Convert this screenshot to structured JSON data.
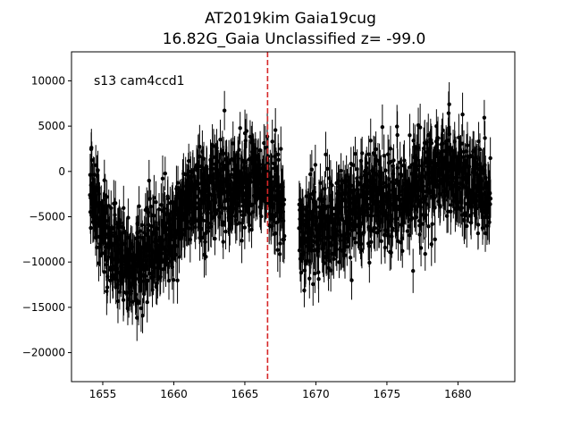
{
  "chart_data": {
    "type": "scatter",
    "title": "AT2019kim  Gaia19cug",
    "subtitle": "16.82G_Gaia Unclassified z= -99.0",
    "annotation": "s13 cam4ccd1",
    "xlabel": "",
    "ylabel": "",
    "xlim": [
      1652.8,
      1684.0
    ],
    "ylim": [
      -23200,
      13200
    ],
    "xticks": [
      1655,
      1660,
      1665,
      1670,
      1675,
      1680
    ],
    "yticks": [
      -20000,
      -15000,
      -10000,
      -5000,
      0,
      5000,
      10000
    ],
    "grid": false,
    "marker_color": "#000000",
    "reference_line": {
      "x": 1666.6,
      "color": "#d62728",
      "style": "dashed"
    },
    "series": [
      {
        "marker": "circle",
        "x_range": [
          1654.1,
          1682.3
        ],
        "gap": [
          1667.8,
          1668.8
        ],
        "trend": [
          [
            1654.1,
            -3000
          ],
          [
            1655.0,
            -7000
          ],
          [
            1656.0,
            -9000
          ],
          [
            1657.0,
            -10500
          ],
          [
            1658.0,
            -9500
          ],
          [
            1659.0,
            -7500
          ],
          [
            1660.0,
            -6000
          ],
          [
            1661.0,
            -3500
          ],
          [
            1662.0,
            -2000
          ],
          [
            1663.0,
            -1500
          ],
          [
            1664.0,
            -2500
          ],
          [
            1665.0,
            -1500
          ],
          [
            1666.0,
            0
          ],
          [
            1666.6,
            -1500
          ],
          [
            1667.5,
            -3000
          ],
          [
            1668.9,
            -6000
          ],
          [
            1670.0,
            -6500
          ],
          [
            1671.0,
            -5500
          ],
          [
            1672.0,
            -5000
          ],
          [
            1673.0,
            -3500
          ],
          [
            1674.0,
            -2500
          ],
          [
            1675.0,
            -3500
          ],
          [
            1676.0,
            -3000
          ],
          [
            1677.0,
            -1500
          ],
          [
            1678.0,
            -500
          ],
          [
            1679.0,
            0
          ],
          [
            1680.0,
            -500
          ],
          [
            1681.0,
            -1500
          ],
          [
            1682.3,
            -2500
          ]
        ],
        "scatter_sigma": 2600,
        "error_bar": 2200
      }
    ]
  }
}
